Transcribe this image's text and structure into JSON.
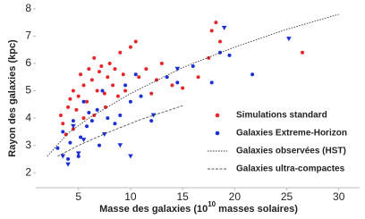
{
  "chart_data": {
    "type": "scatter",
    "x_label": "Masse des galaxies (10",
    "x_label_sup": "10",
    "x_label_end": " masses solaires)",
    "y_label": "Rayon des galaxies (kpc)",
    "xlim": [
      0.9,
      32
    ],
    "ylim": [
      1.45,
      8.16
    ],
    "xticks": [
      5,
      10,
      15,
      20,
      25,
      30
    ],
    "yticks": [
      2,
      3,
      4,
      5,
      6,
      7,
      8
    ],
    "legend": "lower right",
    "series": [
      {
        "name": "Simulations standard",
        "type": "scatter",
        "color": "#e8262a",
        "x": [
          3.3,
          3.5,
          4,
          4.2,
          4.5,
          4.8,
          5,
          5.2,
          5.5,
          5.8,
          6,
          6.3,
          6.5,
          6.8,
          7,
          7.2,
          7.5,
          7.8,
          8,
          8.3,
          8.5,
          8.8,
          9,
          9.3,
          9.5,
          10,
          10.5,
          10.8,
          11.5,
          12,
          12.5,
          13,
          14,
          15,
          16.5,
          17.5,
          17.8,
          18.2,
          18.6,
          26.5,
          3.8,
          4.5,
          5.5,
          6.5,
          7.6
        ],
        "values": [
          4.1,
          3.8,
          4.4,
          4.7,
          5.0,
          4.3,
          4.8,
          5.6,
          5.2,
          4.6,
          5.8,
          5.4,
          6.2,
          5.0,
          5.7,
          5.9,
          4.9,
          5.5,
          6.0,
          5.2,
          5.8,
          4.8,
          6.4,
          5.6,
          5.0,
          6.6,
          6.8,
          5.5,
          5.8,
          4.9,
          5.4,
          6.0,
          5.2,
          5.1,
          5.5,
          6.2,
          7.2,
          7.5,
          6.8,
          6.4,
          3.4,
          3.6,
          4.0,
          4.1,
          4.4
        ]
      },
      {
        "name": "Galaxies Extreme-Horizon",
        "type": "scatter",
        "color": "#1a2fd6",
        "x": [
          3,
          3.5,
          4,
          4.2,
          4.5,
          5,
          5.2,
          5.5,
          5.8,
          6,
          6.3,
          6.8,
          7,
          7.3,
          7.8,
          8.5,
          9,
          9.5,
          10,
          10.5,
          11,
          12,
          13.5,
          14.5,
          16,
          17.8,
          18.6,
          19.5,
          21.7,
          4,
          4.5,
          5,
          5.5,
          7.5,
          9,
          10,
          12.2,
          14.5,
          19,
          25.2,
          3.5
        ],
        "values": [
          2.9,
          3.5,
          2.5,
          3.1,
          3.9,
          2.6,
          3.3,
          4.6,
          3.7,
          4.2,
          3.9,
          4.3,
          3.0,
          5.0,
          4.0,
          3.8,
          4.1,
          5.2,
          4.6,
          5.6,
          4.8,
          3.9,
          5.5,
          5.3,
          5.9,
          5.3,
          6.4,
          6.3,
          5.6,
          2.3,
          3.7,
          2.7,
          3.2,
          3.4,
          3.0,
          2.6,
          4.1,
          5.8,
          7.3,
          6.9,
          2.6
        ],
        "markers": [
          "o",
          "o",
          "o",
          "o",
          "o",
          "o",
          "o",
          "o",
          "o",
          "o",
          "o",
          "o",
          "o",
          "o",
          "o",
          "o",
          "o",
          "o",
          "o",
          "o",
          "o",
          "o",
          "o",
          "o",
          "o",
          "o",
          "o",
          "o",
          "o",
          "v",
          "v",
          "v",
          "v",
          "v",
          "v",
          "v",
          "v",
          "v",
          "v",
          "v",
          "v"
        ]
      },
      {
        "name": "Galaxies observées (HST)",
        "type": "line",
        "color": "#333333",
        "dash": "1.5,1.5",
        "x": [
          2,
          4,
          6,
          10,
          15,
          20,
          25,
          30
        ],
        "values": [
          2.6,
          3.45,
          4.0,
          4.9,
          5.85,
          6.6,
          7.25,
          7.8
        ]
      },
      {
        "name": "Galaxies ultra-compactes",
        "type": "line",
        "color": "#555555",
        "dash": "3,1.5",
        "x": [
          3,
          5,
          8,
          11,
          15
        ],
        "values": [
          2.6,
          3.0,
          3.5,
          3.95,
          4.45
        ]
      }
    ]
  }
}
